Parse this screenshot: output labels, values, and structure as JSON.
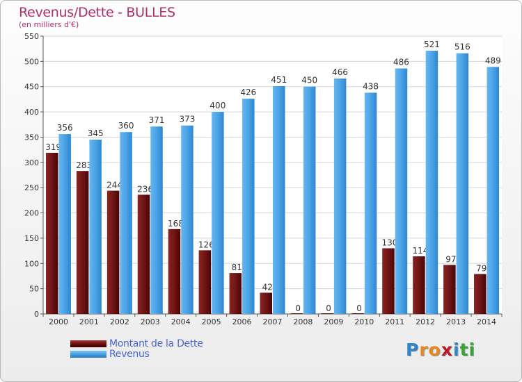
{
  "chart_data": {
    "type": "bar",
    "title": "Revenus/Dette - BULLES",
    "subtitle": "(en milliers d'€)",
    "categories": [
      "2000",
      "2001",
      "2002",
      "2003",
      "2004",
      "2005",
      "2006",
      "2007",
      "2008",
      "2009",
      "2010",
      "2011",
      "2012",
      "2013",
      "2014"
    ],
    "series": [
      {
        "name": "Montant de la Dette",
        "color": "#7a1b1b",
        "values": [
          319,
          283,
          244,
          236,
          168,
          126,
          81,
          42,
          0,
          0,
          0,
          130,
          114,
          97,
          79
        ]
      },
      {
        "name": "Revenus",
        "color": "#4aa3e6",
        "values": [
          356,
          345,
          360,
          371,
          373,
          400,
          426,
          451,
          450,
          466,
          438,
          486,
          521,
          516,
          489
        ]
      }
    ],
    "ylim": [
      0,
      550
    ],
    "yticks": [
      0,
      50,
      100,
      150,
      200,
      250,
      300,
      350,
      400,
      450,
      500,
      550
    ],
    "grid": true,
    "legend_position": "bottom-left",
    "xlabel": "",
    "ylabel": ""
  },
  "logo": {
    "letters": [
      "P",
      "r",
      "o",
      "x",
      "i",
      "t",
      "i"
    ],
    "colors": [
      "#2f86c9",
      "#e8871e",
      "#e8871e",
      "#c0172a",
      "#2f86c9",
      "#3aa33a",
      "#3aa33a"
    ]
  }
}
